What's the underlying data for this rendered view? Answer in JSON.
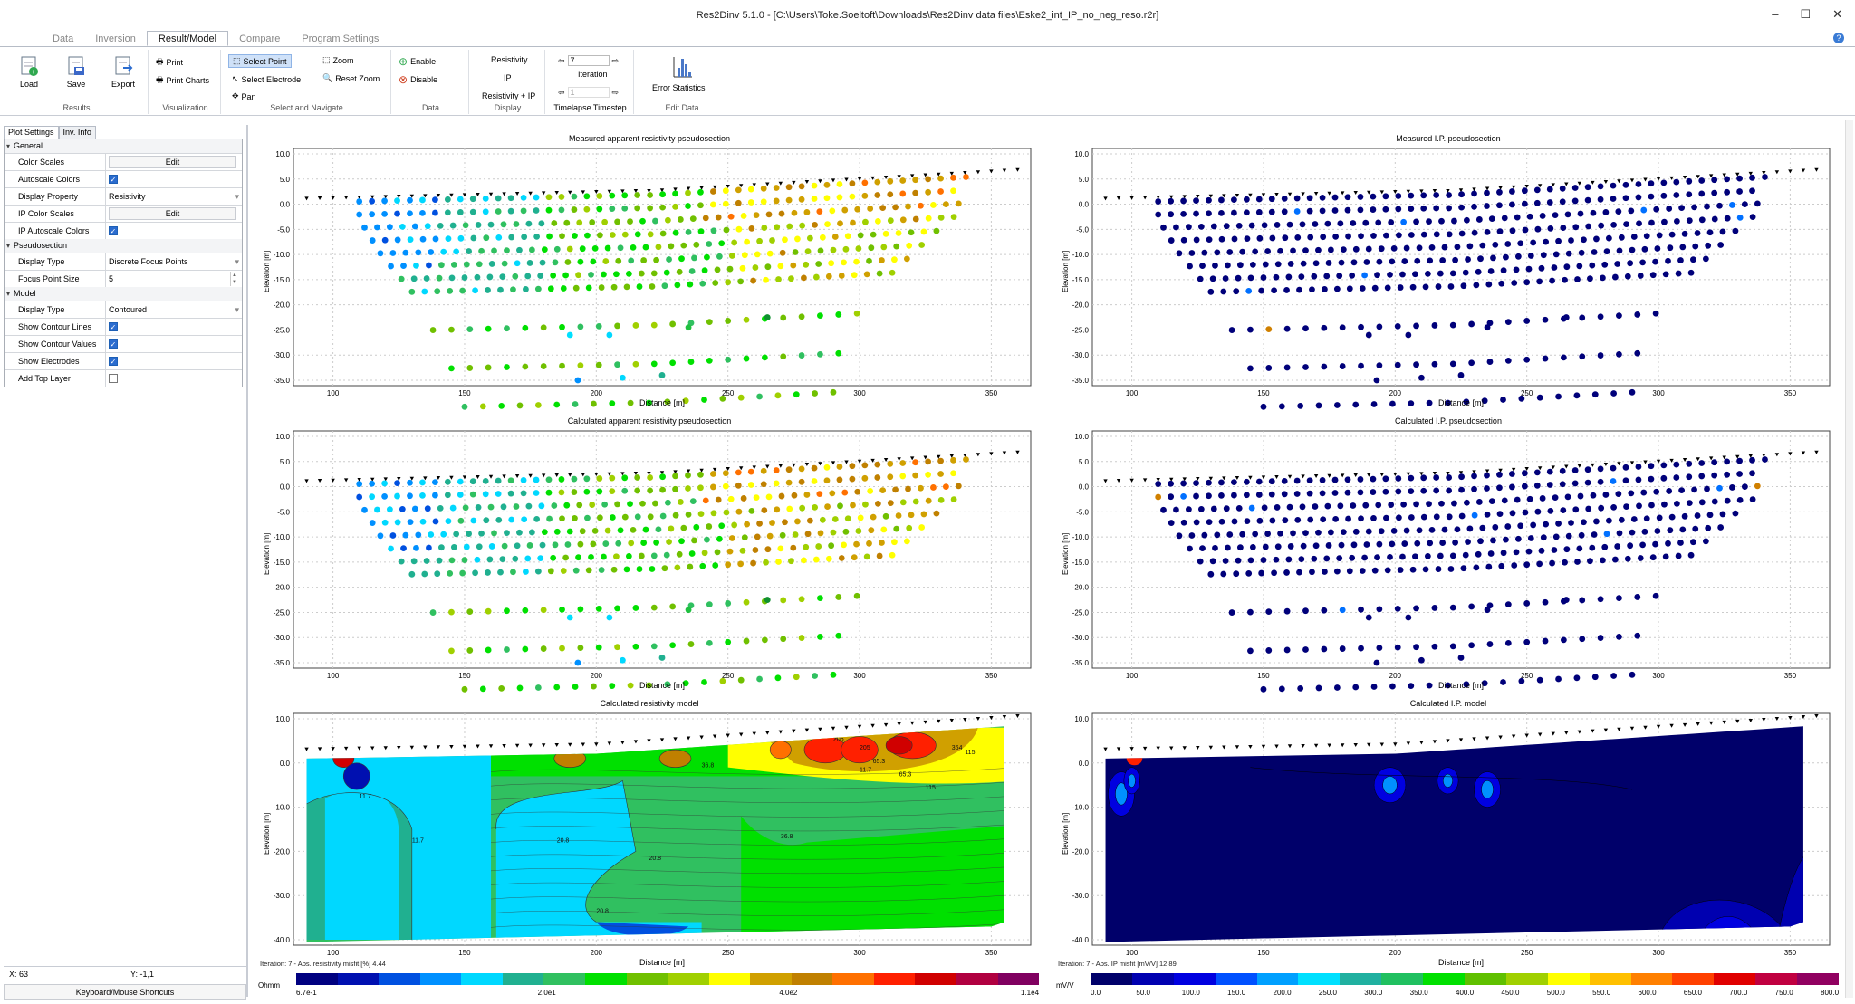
{
  "window": {
    "title": "Res2Dinv 5.1.0  - [C:\\Users\\Toke.Soeltoft\\Downloads\\Res2Dinv  data  files\\Eske2_int_IP_no_neg_reso.r2r]",
    "minimize": "–",
    "maximize": "☐",
    "close": "✕",
    "help": "?"
  },
  "tabs": [
    "Data",
    "Inversion",
    "Result/Model",
    "Compare",
    "Program Settings"
  ],
  "active_tab": "Result/Model",
  "ribbon": {
    "results": {
      "label": "Results",
      "load": "Load",
      "save": "Save",
      "export": "Export"
    },
    "visualization": {
      "label": "Visualization",
      "print": "Print",
      "print_charts": "Print Charts"
    },
    "select": {
      "label": "Select and Navigate",
      "select_point": "Select Point",
      "select_electrode": "Select Electrode",
      "pan": "Pan",
      "zoom": "Zoom",
      "reset_zoom": "Reset Zoom"
    },
    "data": {
      "label": "Data",
      "enable": "Enable",
      "disable": "Disable"
    },
    "display": {
      "label": "Display",
      "resistivity": "Resistivity",
      "ip": "IP",
      "resistivity_ip": "Resistivity + IP"
    },
    "iteration": {
      "label": "Timelapse Timestep",
      "iteration_label": "Iteration",
      "iteration_value": "7",
      "timestep_value": "1"
    },
    "edit": {
      "label": "Edit Data",
      "error_statistics": "Error Statistics"
    }
  },
  "left_tabs": [
    "Plot Settings",
    "Inv. Info"
  ],
  "props": {
    "general": "General",
    "color_scales": {
      "k": "Color Scales",
      "v": "Edit"
    },
    "autoscale_colors": {
      "k": "Autoscale Colors"
    },
    "display_property": {
      "k": "Display Property",
      "v": "Resistivity"
    },
    "ip_color_scales": {
      "k": "IP Color Scales",
      "v": "Edit"
    },
    "ip_autoscale": {
      "k": "IP Autoscale Colors"
    },
    "pseudosection": "Pseudosection",
    "ps_display_type": {
      "k": "Display Type",
      "v": "Discrete Focus Points"
    },
    "focus_point_size": {
      "k": "Focus Point Size",
      "v": "5"
    },
    "model": "Model",
    "model_display_type": {
      "k": "Display Type",
      "v": "Contoured"
    },
    "show_contour_lines": {
      "k": "Show Contour Lines"
    },
    "show_contour_values": {
      "k": "Show Contour Values"
    },
    "show_electrodes": {
      "k": "Show Electrodes"
    },
    "add_top_layer": {
      "k": "Add Top Layer"
    }
  },
  "status": {
    "x": "X: 63",
    "y": "Y: -1,1",
    "shortcuts": "Keyboard/Mouse Shortcuts"
  },
  "axes": {
    "elevation": "Elevation [m]",
    "distance": "Distance [m]"
  },
  "plots": {
    "p1": "Measured apparent resistivity pseudosection",
    "p2": "Measured I.P. pseudosection",
    "p3": "Calculated apparent resistivity pseudosection",
    "p4": "Calculated I.P. pseudosection",
    "p5": "Calculated resistivity model",
    "p6": "Calculated I.P. model"
  },
  "ticks": {
    "pseudo_y": [
      "10.0",
      "5.0",
      "0.0",
      "-5.0",
      "-10.0",
      "-15.0",
      "-20.0",
      "-25.0",
      "-30.0",
      "-35.0"
    ],
    "model_y": [
      "10.0",
      "0.0",
      "-10.0",
      "-20.0",
      "-30.0",
      "-40.0"
    ],
    "x": [
      "100",
      "150",
      "200",
      "250",
      "300",
      "350"
    ]
  },
  "contour_labels": [
    "20.8",
    "20.8",
    "20.8",
    "36.8",
    "36.8",
    "11.7",
    "11.7",
    "11.7",
    "65.3",
    "65.3",
    "115",
    "115",
    "205",
    "205",
    "364"
  ],
  "colorbars": {
    "res": {
      "iter": "Iteration: 7 - Abs. resistivity misfit [%] 4.44",
      "unit": "Ohmm",
      "ticks": [
        "6.7e-1",
        "2.0e1",
        "4.0e2",
        "1.1e4"
      ]
    },
    "ip": {
      "iter": "Iteration: 7 - Abs. IP misfit [mV/V] 12.89",
      "unit": "mV/V",
      "ticks": [
        "0.0",
        "50.0",
        "100.0",
        "150.0",
        "200.0",
        "250.0",
        "300.0",
        "350.0",
        "400.0",
        "450.0",
        "500.0",
        "550.0",
        "600.0",
        "650.0",
        "700.0",
        "750.0",
        "800.0"
      ]
    }
  },
  "colors": {
    "res_scale": [
      "#000080",
      "#0010b0",
      "#0050e0",
      "#0090ff",
      "#00d8ff",
      "#20b090",
      "#30c060",
      "#00e000",
      "#70c000",
      "#a0d000",
      "#ffff00",
      "#d0a000",
      "#c08000",
      "#ff7000",
      "#ff2000",
      "#d00000",
      "#b00040",
      "#800060"
    ],
    "ip_scale": [
      "#00006a",
      "#0000b0",
      "#0000e0",
      "#0050ff",
      "#00a0ff",
      "#00e0ff",
      "#20b0a0",
      "#20c060",
      "#00e000",
      "#60c000",
      "#a0d000",
      "#ffff00",
      "#ffc000",
      "#ff8000",
      "#ff4000",
      "#e00000",
      "#c00040",
      "#900060"
    ]
  }
}
